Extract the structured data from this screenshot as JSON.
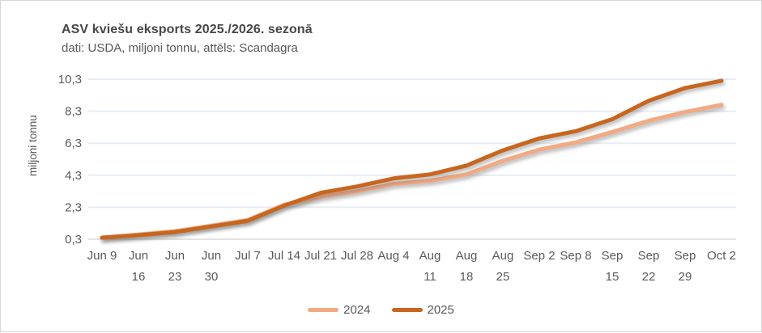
{
  "frame": {
    "bg": "#FFFFFF",
    "border_color": "#D6D6D6"
  },
  "header": {
    "title": "ASV kviešu eksports 2025./2026. sezonā",
    "subtitle": "dati: USDA, miljoni tonnu, attēls: Scandagra"
  },
  "chart_data": {
    "type": "line",
    "title": "ASV kviešu eksports 2025./2026. sezonā",
    "subtitle": "dati: USDA, miljoni tonnu, attēls: Scandagra",
    "ylabel": "miljoni tonnu",
    "xlabel": "",
    "categories": [
      "Jun 9",
      "Jun\n16",
      "Jun\n23",
      "Jun\n30",
      "Jul 7",
      "Jul 14",
      "Jul 21",
      "Jul 28",
      "Aug 4",
      "Aug\n11",
      "Aug\n18",
      "Aug\n25",
      "Sep 2",
      "Sep 8",
      "Sep\n15",
      "Sep\n22",
      "Sep\n29",
      "Oct 2"
    ],
    "y_tick_labels": [
      "0,3",
      "2,3",
      "4,3",
      "6,3",
      "8,3",
      "10,3"
    ],
    "y_tick_values": [
      0.3,
      2.3,
      4.3,
      6.3,
      8.3,
      10.3
    ],
    "ylim": [
      0.3,
      10.3
    ],
    "grid": true,
    "gridline_color": "#E7EDF4",
    "axis_line_color": "#D9D9D9",
    "legend_position": "bottom",
    "series": [
      {
        "name": "2024",
        "color": "#F2AA84",
        "values": [
          0.38,
          0.6,
          0.8,
          1.15,
          1.5,
          2.45,
          2.95,
          3.3,
          3.75,
          3.95,
          4.35,
          5.2,
          5.9,
          6.35,
          7.0,
          7.7,
          8.25,
          8.7
        ]
      },
      {
        "name": "2025",
        "color": "#C8661F",
        "values": [
          0.4,
          0.55,
          0.75,
          1.1,
          1.45,
          2.4,
          3.2,
          3.6,
          4.1,
          4.35,
          4.9,
          5.85,
          6.6,
          7.05,
          7.8,
          8.95,
          9.75,
          10.2
        ]
      }
    ]
  }
}
